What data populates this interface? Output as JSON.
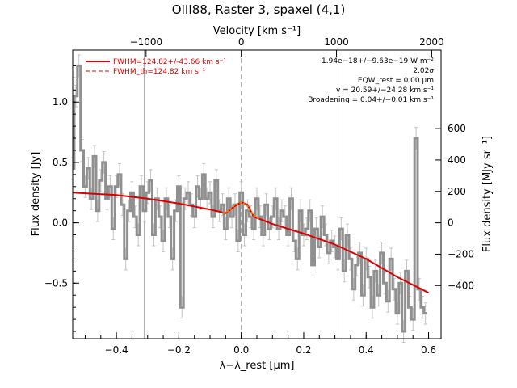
{
  "chart_data": {
    "type": "line",
    "title": "OIII88, Raster 3, spaxel (4,1)",
    "xlabel": "λ−λ_rest [μm]",
    "ylabel": "Flux density [Jy]",
    "top_xlabel": "Velocity [km s⁻¹]",
    "right_ylabel": "Flux density [MJy sr⁻¹]",
    "xlim": [
      -0.54,
      0.64
    ],
    "ylim": [
      -0.96,
      1.43
    ],
    "x_ticks": [
      -0.4,
      -0.2,
      0.0,
      0.2,
      0.4,
      0.6
    ],
    "x_tick_labels": [
      "−0.4",
      "−0.2",
      "0.0",
      "0.2",
      "0.4",
      "0.6"
    ],
    "y_ticks": [
      -0.5,
      0.0,
      0.5,
      1.0
    ],
    "y_tick_labels": [
      "−0.5",
      "0.0",
      "0.5",
      "1.0"
    ],
    "top_ticks": [
      -1000,
      0,
      1000,
      2000
    ],
    "top_tick_labels": [
      "−1000",
      "0",
      "1000",
      "2000"
    ],
    "right_ticks": [
      -400,
      -200,
      0,
      200,
      400,
      600
    ],
    "right_tick_labels": [
      "−400",
      "−200",
      "0",
      "200",
      "400",
      "600"
    ],
    "vertical_lines": [
      {
        "x": -0.31,
        "style": "solid",
        "color": "#808080"
      },
      {
        "x": 0.0,
        "style": "dashed",
        "color": "#a0a0a0"
      },
      {
        "x": 0.31,
        "style": "solid",
        "color": "#808080"
      }
    ],
    "series": [
      {
        "name": "",
        "style": "step",
        "color": "#909090",
        "x": [
          -0.54,
          -0.53,
          -0.52,
          -0.51,
          -0.5,
          -0.49,
          -0.48,
          -0.47,
          -0.46,
          -0.45,
          -0.44,
          -0.43,
          -0.42,
          -0.41,
          -0.4,
          -0.39,
          -0.38,
          -0.37,
          -0.36,
          -0.35,
          -0.34,
          -0.33,
          -0.32,
          -0.31,
          -0.3,
          -0.29,
          -0.28,
          -0.27,
          -0.26,
          -0.25,
          -0.24,
          -0.23,
          -0.22,
          -0.21,
          -0.2,
          -0.19,
          -0.18,
          -0.17,
          -0.16,
          -0.15,
          -0.14,
          -0.13,
          -0.12,
          -0.11,
          -0.1,
          -0.09,
          -0.08,
          -0.07,
          -0.06,
          -0.05,
          -0.04,
          -0.03,
          -0.02,
          -0.01,
          0.0,
          0.01,
          0.02,
          0.03,
          0.04,
          0.05,
          0.06,
          0.07,
          0.08,
          0.09,
          0.1,
          0.11,
          0.12,
          0.13,
          0.14,
          0.15,
          0.16,
          0.17,
          0.18,
          0.19,
          0.2,
          0.21,
          0.22,
          0.23,
          0.24,
          0.25,
          0.26,
          0.27,
          0.28,
          0.29,
          0.3,
          0.31,
          0.32,
          0.33,
          0.34,
          0.35,
          0.36,
          0.37,
          0.38,
          0.39,
          0.4,
          0.41,
          0.42,
          0.43,
          0.44,
          0.45,
          0.46,
          0.47,
          0.48,
          0.49,
          0.5,
          0.51,
          0.52,
          0.53,
          0.54,
          0.55,
          0.56,
          0.57,
          0.58,
          0.59
        ],
        "y": [
          0.45,
          1.05,
          1.3,
          0.6,
          0.3,
          0.45,
          0.2,
          0.55,
          0.1,
          0.35,
          0.5,
          0.2,
          0.3,
          -0.05,
          0.3,
          0.4,
          0.15,
          -0.3,
          0.1,
          0.25,
          0.05,
          -0.1,
          0.3,
          0.1,
          0.25,
          0.35,
          -0.1,
          0.2,
          0.05,
          -0.15,
          0.2,
          0.05,
          -0.3,
          0.1,
          0.3,
          -0.7,
          0.2,
          0.25,
          0.15,
          0.05,
          0.3,
          0.2,
          0.4,
          0.2,
          0.25,
          0.05,
          0.35,
          0.1,
          0.15,
          -0.05,
          0.2,
          0.05,
          0.15,
          -0.15,
          0.25,
          -0.1,
          0.1,
          0.05,
          -0.05,
          0.2,
          0.05,
          -0.1,
          0.15,
          -0.05,
          0.05,
          0.2,
          -0.05,
          0.1,
          0.05,
          -0.1,
          0.2,
          -0.15,
          -0.3,
          0.1,
          -0.1,
          -0.05,
          0.1,
          -0.35,
          -0.05,
          -0.2,
          0.05,
          -0.1,
          -0.25,
          -0.15,
          -0.2,
          -0.3,
          -0.05,
          -0.4,
          -0.1,
          -0.3,
          -0.55,
          -0.35,
          -0.25,
          -0.6,
          -0.3,
          -0.45,
          -0.7,
          -0.4,
          -0.6,
          -0.25,
          -0.5,
          -0.65,
          -0.3,
          -0.55,
          -0.75,
          -0.5,
          -0.9,
          -0.4,
          -0.7,
          -0.8,
          0.7,
          -0.55,
          -0.7,
          -0.75
        ],
        "err": 0.09
      },
      {
        "name": "FWHM=124.82+/-43.66 km s⁻¹",
        "style": "solid",
        "color": "#dd0000",
        "x": [
          -0.54,
          -0.4,
          -0.3,
          -0.2,
          -0.1,
          -0.05,
          -0.02,
          0.0,
          0.02,
          0.04,
          0.06,
          0.1,
          0.2,
          0.3,
          0.4,
          0.5,
          0.6
        ],
        "y": [
          0.25,
          0.23,
          0.2,
          0.16,
          0.11,
          0.08,
          0.14,
          0.17,
          0.15,
          0.05,
          0.03,
          -0.01,
          -0.09,
          -0.18,
          -0.3,
          -0.45,
          -0.58
        ]
      },
      {
        "name": "FWHM_th=124.82 km s⁻¹",
        "style": "dashed",
        "color": "#dd0000",
        "x": [
          -0.06,
          -0.04,
          -0.02,
          0.0,
          0.02,
          0.04,
          0.06
        ],
        "y": [
          0.08,
          0.1,
          0.15,
          0.17,
          0.14,
          0.06,
          0.03
        ]
      }
    ],
    "annotations": [
      "1.94e−18+/−9.63e−19 W m⁻²",
      "2.02σ",
      "EQW_rest = 0.00 μm",
      "v = 20.59+/−24.28 km s⁻¹",
      "Broadening = 0.04+/−0.01 km s⁻¹"
    ],
    "legend_position": "top-left",
    "grid": false
  }
}
